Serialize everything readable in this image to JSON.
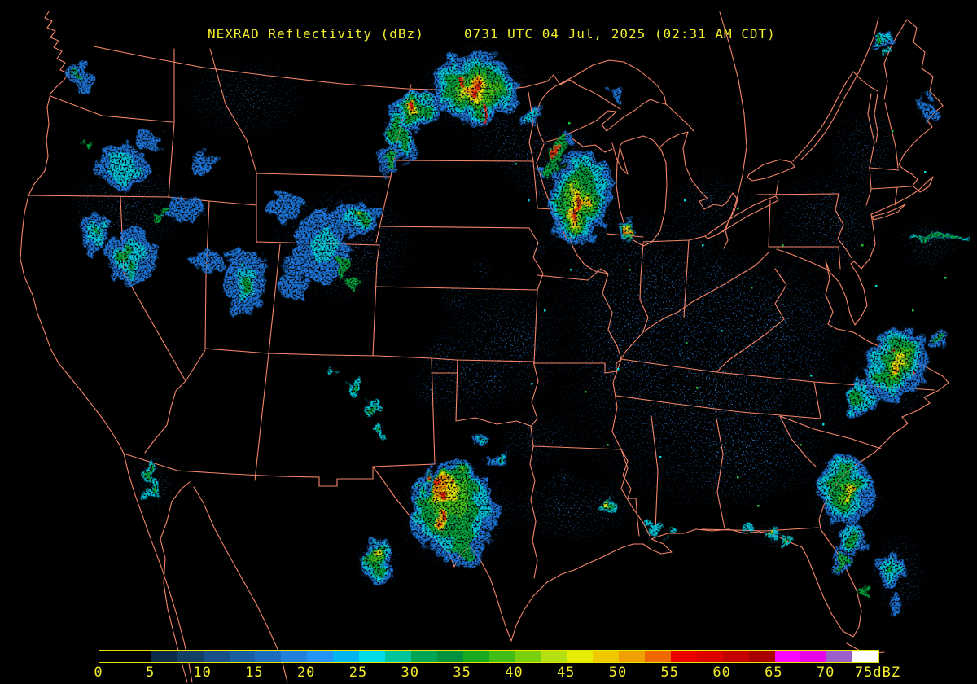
{
  "header": {
    "product_title": "NEXRAD Reflectivity (dBz)",
    "timestamp": "0731 UTC 04 Jul, 2025 (02:31 AM CDT)"
  },
  "colors": {
    "text_yellow": "#f2ee2a",
    "state_border": "#f5866a",
    "background": "#000000",
    "colorbar_border": "#e9e500"
  },
  "colorbar": {
    "unit": "dBZ",
    "tick_labels": [
      "0",
      "5",
      "10",
      "15",
      "20",
      "25",
      "30",
      "35",
      "40",
      "45",
      "50",
      "55",
      "60",
      "65",
      "70",
      "75dBZ"
    ],
    "tick_values": [
      0,
      5,
      10,
      15,
      20,
      25,
      30,
      35,
      40,
      45,
      50,
      55,
      60,
      65,
      70,
      75
    ],
    "segment_colors": [
      "#000000",
      "#000000",
      "#0d2a48",
      "#133e66",
      "#175088",
      "#1a5ea2",
      "#1e6ec0",
      "#2180dc",
      "#2393f4",
      "#00b4f0",
      "#00dce8",
      "#00c49c",
      "#00a556",
      "#00923e",
      "#18aa20",
      "#40be16",
      "#78d00e",
      "#b4e014",
      "#e6ee00",
      "#eec800",
      "#f0a000",
      "#f26800",
      "#ee0000",
      "#dc0000",
      "#c40000",
      "#a80000",
      "#ff00ff",
      "#e800e8",
      "#9a5fc8",
      "#ffffff"
    ]
  },
  "legend_note": "reflectivity scale 0-75 dBZ in 2.5 dBZ steps",
  "palette": {
    "b": "#1d74d8",
    "c": "#00c6dc",
    "g": "#00a63c",
    "g2": "#3cc414",
    "y": "#e6e400",
    "o": "#f09000",
    "r": "#e82400",
    "d": "#b00000"
  },
  "echo_levels_order": [
    "b",
    "c",
    "g",
    "g2",
    "y",
    "o",
    "r",
    "d"
  ],
  "echo_cells": {
    "b": [
      [
        583,
        108,
        52,
        42,
        0
      ],
      [
        512,
        135,
        30,
        24,
        0
      ],
      [
        492,
        168,
        16,
        34,
        -25
      ],
      [
        478,
        196,
        12,
        18,
        0
      ],
      [
        712,
        243,
        38,
        58,
        12
      ],
      [
        768,
        284,
        8,
        14,
        0
      ],
      [
        558,
        628,
        52,
        58,
        0
      ],
      [
        573,
        668,
        24,
        30,
        0
      ],
      [
        465,
        685,
        16,
        24,
        0
      ],
      [
        466,
        692,
        18,
        26,
        0
      ],
      [
        592,
        540,
        11,
        8,
        0
      ],
      [
        613,
        562,
        13,
        10,
        0
      ],
      [
        428,
        270,
        42,
        22,
        -10
      ],
      [
        352,
        252,
        22,
        15,
        0
      ],
      [
        395,
        305,
        32,
        45,
        0
      ],
      [
        300,
        345,
        26,
        42,
        0
      ],
      [
        360,
        340,
        16,
        28,
        0
      ],
      [
        255,
        320,
        18,
        14,
        0
      ],
      [
        150,
        205,
        32,
        28,
        0
      ],
      [
        115,
        285,
        16,
        24,
        0
      ],
      [
        160,
        315,
        30,
        36,
        0
      ],
      [
        228,
        258,
        22,
        16,
        0
      ],
      [
        100,
        95,
        14,
        20,
        0
      ],
      [
        185,
        170,
        15,
        12,
        0
      ],
      [
        250,
        200,
        14,
        10,
        0
      ],
      [
        1038,
        602,
        34,
        44,
        0
      ],
      [
        1048,
        662,
        14,
        20,
        0
      ],
      [
        1032,
        690,
        10,
        14,
        0
      ],
      [
        1095,
        700,
        16,
        22,
        0
      ],
      [
        1100,
        742,
        10,
        14,
        0
      ],
      [
        1102,
        448,
        36,
        46,
        25
      ],
      [
        1058,
        490,
        18,
        20,
        0
      ],
      [
        1152,
        415,
        10,
        14,
        0
      ],
      [
        1082,
        50,
        14,
        10,
        0
      ],
      [
        1140,
        135,
        10,
        16,
        0
      ],
      [
        655,
        140,
        12,
        9,
        0
      ],
      [
        700,
        170,
        10,
        8,
        0
      ],
      [
        672,
        210,
        8,
        6,
        0
      ],
      [
        758,
        118,
        8,
        10,
        0
      ]
    ],
    "c": [
      [
        583,
        108,
        44,
        35,
        0
      ],
      [
        512,
        134,
        24,
        19,
        0
      ],
      [
        490,
        166,
        12,
        28,
        -25
      ],
      [
        711,
        243,
        30,
        50,
        12
      ],
      [
        768,
        284,
        6,
        11,
        0
      ],
      [
        556,
        625,
        44,
        50,
        0
      ],
      [
        464,
        683,
        12,
        19,
        0
      ],
      [
        465,
        690,
        14,
        21,
        0
      ],
      [
        592,
        540,
        7,
        5,
        0
      ],
      [
        613,
        562,
        8,
        6,
        0
      ],
      [
        440,
        267,
        20,
        12,
        -10
      ],
      [
        398,
        300,
        14,
        22,
        0
      ],
      [
        302,
        348,
        10,
        20,
        0
      ],
      [
        152,
        208,
        18,
        16,
        0
      ],
      [
        160,
        318,
        18,
        24,
        0
      ],
      [
        118,
        288,
        8,
        14,
        0
      ],
      [
        184,
        582,
        7,
        14,
        0
      ],
      [
        187,
        602,
        7,
        12,
        0
      ],
      [
        436,
        474,
        8,
        11,
        0
      ],
      [
        456,
        500,
        7,
        9,
        0
      ],
      [
        470,
        527,
        6,
        8,
        0
      ],
      [
        408,
        455,
        5,
        7,
        0
      ],
      [
        1036,
        600,
        26,
        34,
        0
      ],
      [
        1047,
        660,
        10,
        15,
        0
      ],
      [
        1094,
        698,
        10,
        15,
        0
      ],
      [
        1100,
        446,
        28,
        38,
        25
      ],
      [
        1056,
        488,
        13,
        15,
        0
      ],
      [
        1152,
        290,
        32,
        4,
        -3
      ],
      [
        748,
        620,
        9,
        12,
        0
      ],
      [
        800,
        648,
        6,
        8,
        0
      ],
      [
        948,
        654,
        8,
        8,
        0
      ],
      [
        966,
        664,
        6,
        7,
        0
      ],
      [
        920,
        648,
        5,
        5,
        0
      ],
      [
        822,
        655,
        4,
        5,
        0
      ],
      [
        1080,
        48,
        9,
        7,
        0
      ],
      [
        1090,
        70,
        5,
        6,
        0
      ],
      [
        655,
        139,
        7,
        5,
        0
      ]
    ],
    "g": [
      [
        583,
        110,
        36,
        28,
        0
      ],
      [
        512,
        133,
        18,
        14,
        0
      ],
      [
        489,
        165,
        8,
        22,
        -25
      ],
      [
        479,
        195,
        6,
        12,
        0
      ],
      [
        709,
        246,
        22,
        42,
        12
      ],
      [
        683,
        192,
        9,
        24,
        18
      ],
      [
        769,
        285,
        5,
        12,
        0
      ],
      [
        552,
        618,
        36,
        42,
        0
      ],
      [
        570,
        664,
        14,
        22,
        0
      ],
      [
        463,
        681,
        8,
        14,
        0
      ],
      [
        464,
        688,
        10,
        16,
        0
      ],
      [
        613,
        562,
        4,
        3,
        0
      ],
      [
        444,
        266,
        13,
        8,
        -10
      ],
      [
        419,
        330,
        7,
        18,
        0
      ],
      [
        303,
        352,
        5,
        12,
        0
      ],
      [
        434,
        348,
        5,
        10,
        0
      ],
      [
        108,
        178,
        4,
        9,
        0
      ],
      [
        200,
        263,
        7,
        5,
        0
      ],
      [
        152,
        312,
        5,
        12,
        0
      ],
      [
        162,
        332,
        4,
        8,
        0
      ],
      [
        118,
        287,
        3,
        7,
        0
      ],
      [
        98,
        92,
        3,
        6,
        0
      ],
      [
        184,
        581,
        4,
        9,
        0
      ],
      [
        187,
        601,
        3,
        6,
        0
      ],
      [
        436,
        474,
        4,
        6,
        0
      ],
      [
        457,
        501,
        3,
        5,
        0
      ],
      [
        470,
        527,
        3,
        4,
        0
      ],
      [
        1038,
        602,
        18,
        26,
        0
      ],
      [
        1048,
        660,
        6,
        10,
        0
      ],
      [
        1034,
        690,
        4,
        8,
        0
      ],
      [
        1094,
        697,
        5,
        9,
        0
      ],
      [
        1062,
        727,
        4,
        6,
        0
      ],
      [
        1100,
        445,
        20,
        30,
        25
      ],
      [
        1054,
        487,
        7,
        9,
        0
      ],
      [
        1150,
        414,
        4,
        7,
        0
      ],
      [
        1152,
        290,
        26,
        3,
        -3
      ],
      [
        747,
        618,
        6,
        9,
        0
      ],
      [
        947,
        653,
        5,
        5,
        0
      ],
      [
        965,
        663,
        3,
        4,
        0
      ],
      [
        1078,
        47,
        5,
        4,
        0
      ],
      [
        1090,
        70,
        2,
        3,
        0
      ]
    ],
    "g2": [
      [
        583,
        112,
        26,
        20,
        0
      ],
      [
        708,
        250,
        15,
        32,
        10
      ],
      [
        548,
        606,
        28,
        26,
        -15
      ],
      [
        463,
        686,
        5,
        9,
        0
      ],
      [
        1041,
        604,
        10,
        16,
        0
      ],
      [
        1102,
        448,
        12,
        20,
        25
      ]
    ],
    "y": [
      [
        582,
        112,
        16,
        13,
        0
      ],
      [
        510,
        132,
        9,
        7,
        0
      ],
      [
        707,
        253,
        9,
        24,
        10
      ],
      [
        769,
        285,
        2.5,
        7,
        0
      ],
      [
        545,
        600,
        20,
        17,
        -20
      ],
      [
        543,
        637,
        7,
        9,
        0
      ],
      [
        462,
        678,
        3,
        5,
        0
      ],
      [
        443,
        265,
        5,
        3,
        -10
      ],
      [
        1044,
        605,
        5,
        9,
        0
      ],
      [
        1103,
        450,
        6,
        12,
        25
      ],
      [
        746,
        617,
        3,
        4,
        0
      ],
      [
        946,
        652,
        2,
        3,
        0
      ]
    ],
    "o": [
      [
        581,
        111,
        10,
        9,
        0
      ],
      [
        709,
        256,
        5,
        18,
        8
      ],
      [
        540,
        597,
        13,
        11,
        -20
      ],
      [
        543,
        637,
        4,
        6,
        0
      ],
      [
        1050,
        604,
        3,
        5,
        0
      ],
      [
        1104,
        452,
        3,
        6,
        25
      ]
    ],
    "r": [
      [
        585,
        112,
        5,
        7,
        0
      ],
      [
        571,
        96,
        4,
        5,
        0
      ],
      [
        595,
        138,
        3,
        7,
        0
      ],
      [
        510,
        130,
        3,
        4,
        0
      ],
      [
        710,
        258,
        2.5,
        12,
        8
      ],
      [
        681,
        186,
        2.5,
        8,
        15
      ],
      [
        768,
        286,
        1.5,
        5,
        0
      ],
      [
        533,
        590,
        5,
        4,
        0
      ],
      [
        546,
        612,
        5,
        4,
        0
      ],
      [
        543,
        639,
        3,
        5,
        0
      ],
      [
        556,
        588,
        3,
        3,
        0
      ],
      [
        1097,
        430,
        2,
        4,
        0
      ],
      [
        1123,
        456,
        2,
        5,
        0
      ]
    ],
    "d": [
      [
        585,
        113,
        2,
        4,
        0
      ],
      [
        710,
        260,
        1.5,
        6,
        8
      ]
    ]
  },
  "speckle_fields": [
    [
      870,
      480,
      190,
      150,
      0.8
    ],
    [
      800,
      350,
      130,
      95,
      0.75
    ],
    [
      950,
      390,
      95,
      85,
      0.7
    ],
    [
      680,
      200,
      65,
      58,
      0.7
    ],
    [
      620,
      420,
      85,
      85,
      0.65
    ],
    [
      560,
      470,
      65,
      52,
      0.6
    ],
    [
      1020,
      270,
      75,
      65,
      0.7
    ],
    [
      1062,
      185,
      45,
      55,
      0.65
    ],
    [
      700,
      625,
      85,
      42,
      0.7
    ],
    [
      920,
      560,
      85,
      60,
      0.7
    ],
    [
      300,
      120,
      85,
      55,
      0.55
    ],
    [
      155,
      255,
      75,
      65,
      0.7
    ],
    [
      420,
      300,
      95,
      75,
      0.75
    ],
    [
      583,
      110,
      72,
      58,
      0.85
    ],
    [
      712,
      245,
      58,
      72,
      0.85
    ],
    [
      558,
      630,
      72,
      72,
      0.85
    ],
    [
      1100,
      452,
      52,
      62,
      0.8
    ],
    [
      1040,
      612,
      48,
      58,
      0.8
    ],
    [
      1105,
      705,
      35,
      55,
      0.7
    ],
    [
      465,
      690,
      28,
      36,
      0.8
    ],
    [
      190,
      590,
      25,
      40,
      0.7
    ],
    [
      747,
      622,
      20,
      25,
      0.7
    ],
    [
      950,
      658,
      28,
      18,
      0.7
    ],
    [
      618,
      175,
      50,
      40,
      0.6
    ],
    [
      1140,
      300,
      40,
      35,
      0.6
    ],
    [
      870,
      250,
      60,
      45,
      0.55
    ],
    [
      760,
      430,
      60,
      70,
      0.6
    ],
    [
      660,
      540,
      50,
      40,
      0.55
    ]
  ],
  "clutter_rings": [
    [
      560,
      365,
      22
    ],
    [
      545,
      432,
      24
    ],
    [
      640,
      420,
      26
    ],
    [
      608,
      472,
      20
    ],
    [
      660,
      305,
      16
    ],
    [
      700,
      262,
      14
    ],
    [
      720,
      335,
      18
    ],
    [
      592,
      330,
      14
    ],
    [
      530,
      480,
      16
    ],
    [
      690,
      590,
      18
    ],
    [
      840,
      430,
      20
    ],
    [
      900,
      490,
      18
    ],
    [
      960,
      420,
      16
    ],
    [
      820,
      520,
      18
    ],
    [
      880,
      330,
      16
    ]
  ],
  "flecks": [
    [
      842,
      420,
      "g"
    ],
    [
      905,
      255,
      "g"
    ],
    [
      862,
      300,
      "c"
    ],
    [
      922,
      352,
      "g"
    ],
    [
      758,
      452,
      "c"
    ],
    [
      982,
      545,
      "g"
    ],
    [
      810,
      560,
      "c"
    ],
    [
      718,
      480,
      "g"
    ],
    [
      668,
      380,
      "c"
    ],
    [
      905,
      585,
      "g"
    ],
    [
      1010,
      520,
      "c"
    ],
    [
      960,
      300,
      "g"
    ],
    [
      840,
      245,
      "c"
    ],
    [
      772,
      330,
      "g"
    ],
    [
      652,
      470,
      "c"
    ],
    [
      930,
      620,
      "g"
    ],
    [
      1075,
      350,
      "c"
    ],
    [
      1120,
      380,
      "g"
    ],
    [
      700,
      330,
      "c"
    ],
    [
      855,
      475,
      "g"
    ],
    [
      995,
      460,
      "c"
    ],
    [
      745,
      545,
      "g"
    ],
    [
      885,
      405,
      "c"
    ],
    [
      1058,
      300,
      "g"
    ],
    [
      648,
      245,
      "c"
    ],
    [
      698,
      150,
      "g"
    ],
    [
      632,
      200,
      "c"
    ],
    [
      1095,
      160,
      "g"
    ],
    [
      1135,
      210,
      "c"
    ],
    [
      1160,
      340,
      "g"
    ]
  ]
}
